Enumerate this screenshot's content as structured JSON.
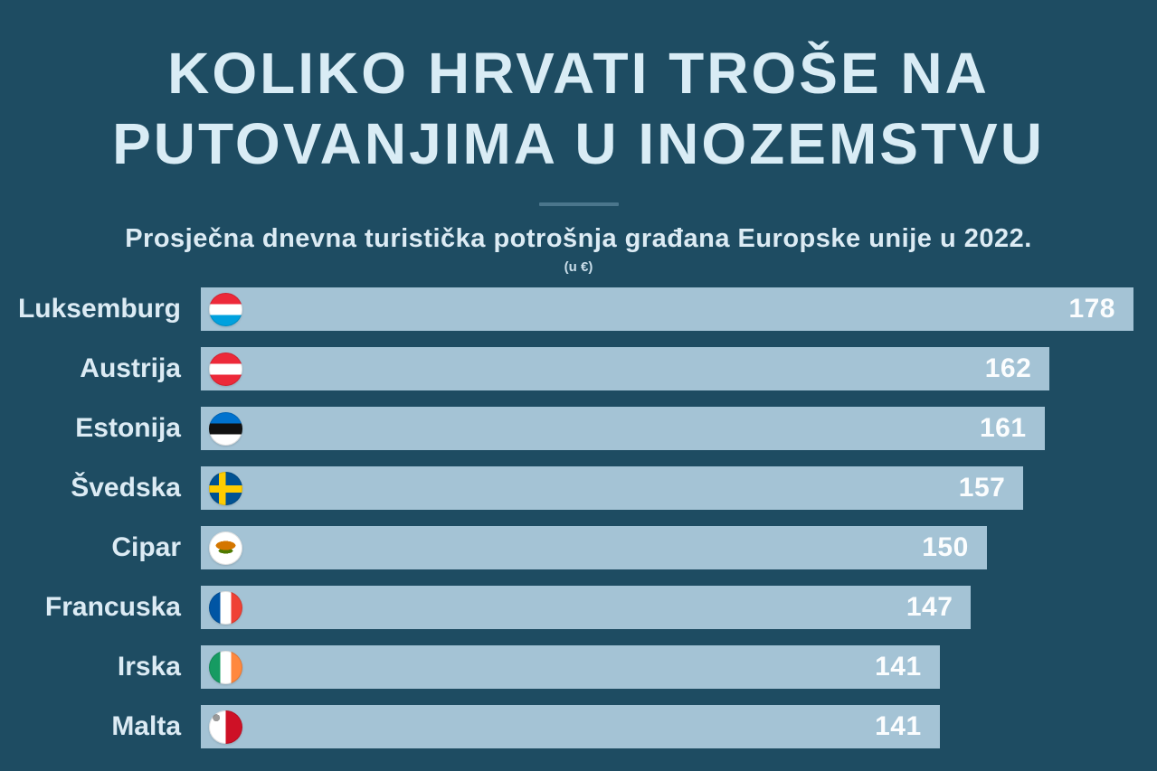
{
  "header": {
    "title_line1": "KOLIKO HRVATI TROŠE NA",
    "title_line2": "PUTOVANJIMA U INOZEMSTVU",
    "subtitle": "Prosječna dnevna turistička potrošnja građana Europske unije u 2022.",
    "unit": "(u €)"
  },
  "chart_data": {
    "type": "bar",
    "orientation": "horizontal",
    "title": "KOLIKO HRVATI TROŠE NA PUTOVANJIMA U INOZEMSTVU",
    "subtitle": "Prosječna dnevna turistička potrošnja građana Europske unije u 2022.",
    "unit": "€",
    "categories": [
      "Luksemburg",
      "Austrija",
      "Estonija",
      "Švedska",
      "Cipar",
      "Francuska",
      "Irska",
      "Malta"
    ],
    "values": [
      178,
      162,
      161,
      157,
      150,
      147,
      141,
      141
    ],
    "max_value": 178,
    "flag_icons": [
      "flag-luxembourg",
      "flag-austria",
      "flag-estonia",
      "flag-sweden",
      "flag-cyprus",
      "flag-france",
      "flag-ireland",
      "flag-malta"
    ],
    "legend": false,
    "grid": false,
    "value_labels": "inside-bar-right"
  },
  "colors": {
    "background": "#1e4c62",
    "bar": "#a4c3d5",
    "title_text": "#d9ecf5",
    "label_text": "#dcebf4",
    "value_text": "#fbfdfe",
    "divider": "#4b768c"
  }
}
